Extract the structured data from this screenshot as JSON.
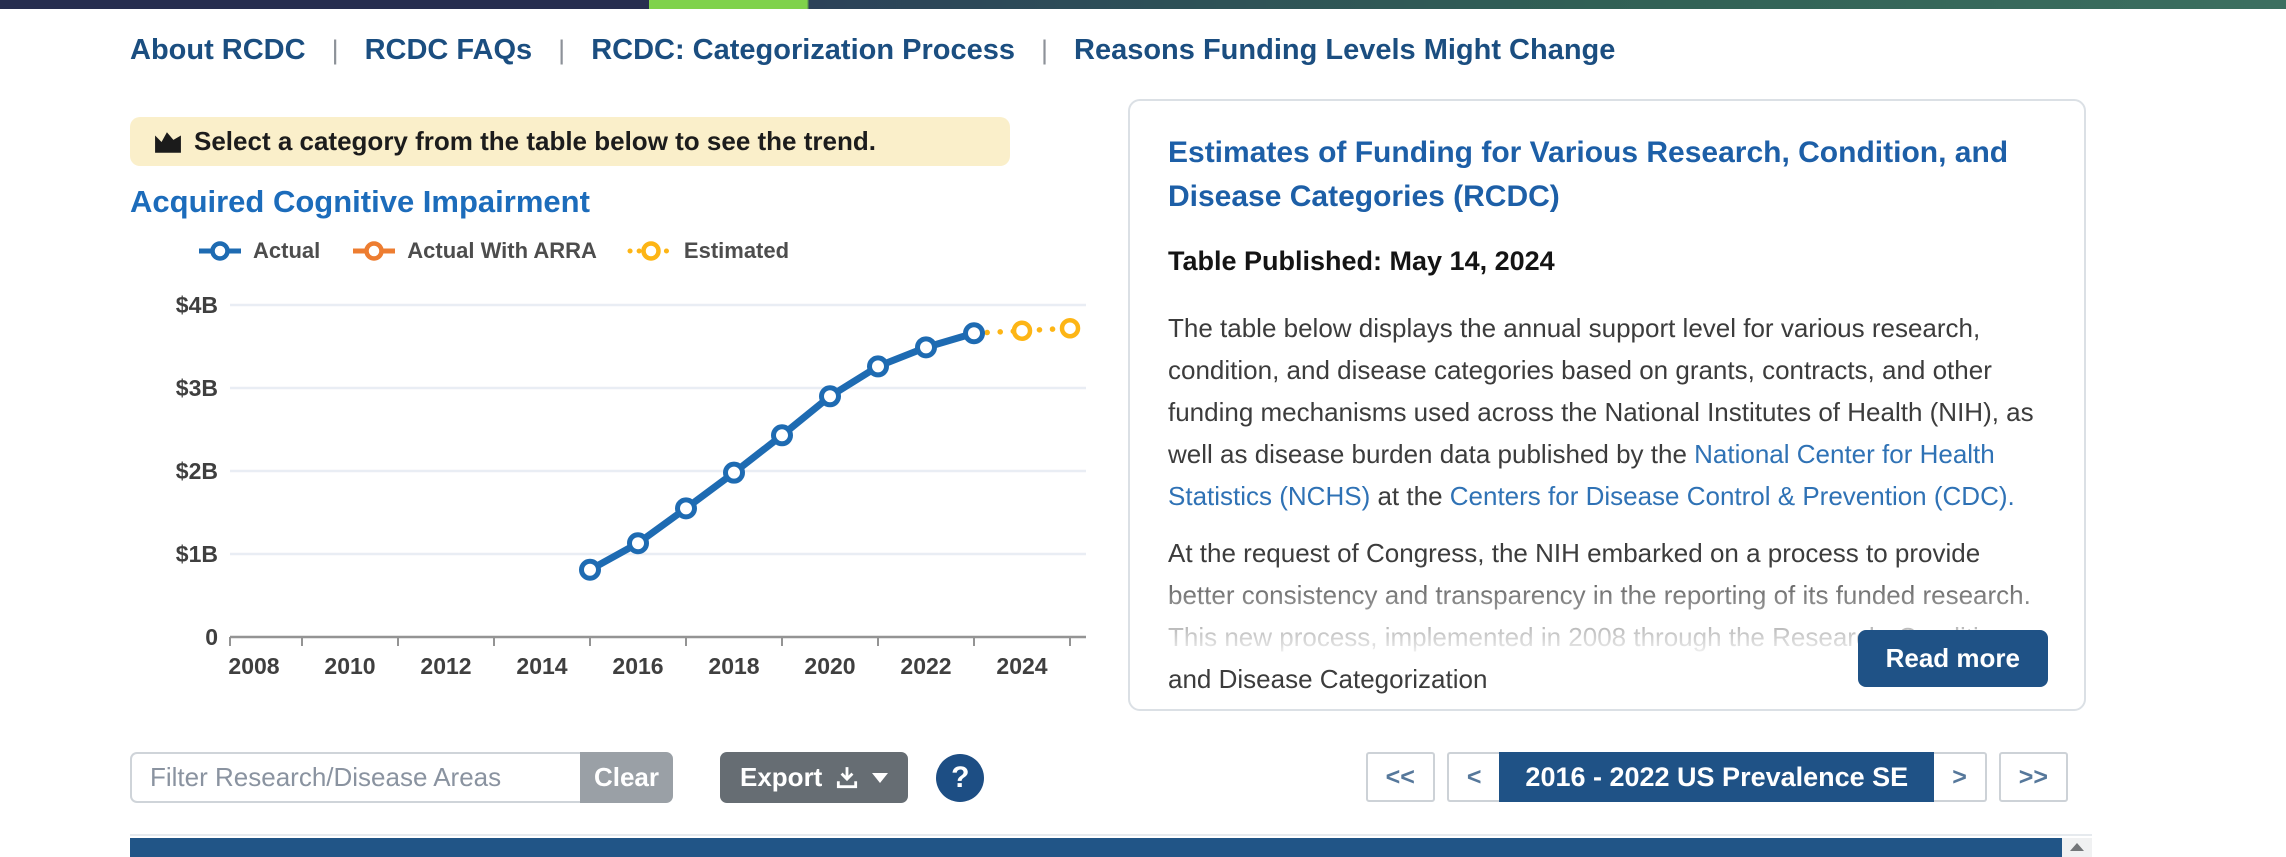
{
  "top_nav": {
    "separator": "|",
    "items": [
      "About RCDC",
      "RCDC FAQs",
      "RCDC: Categorization Process",
      "Reasons Funding Levels Might Change"
    ]
  },
  "alert": {
    "text": "Select a category from the table below to see the trend."
  },
  "chart_data": {
    "type": "line",
    "title": "Acquired Cognitive Impairment",
    "x_ticks": [
      2008,
      2010,
      2012,
      2014,
      2016,
      2018,
      2020,
      2022,
      2024
    ],
    "y_ticks": [
      {
        "label": "$4B",
        "value": 4
      },
      {
        "label": "$3B",
        "value": 3
      },
      {
        "label": "$2B",
        "value": 2
      },
      {
        "label": "$1B",
        "value": 1
      },
      {
        "label": "0",
        "value": 0
      }
    ],
    "xlim": [
      2007.5,
      2025.5
    ],
    "ylim": [
      0,
      4.35
    ],
    "grid": "horizontal-only",
    "legend_position": "top",
    "series": [
      {
        "name": "Actual",
        "color": "#1e6bb2",
        "style": "solid",
        "points": [
          {
            "year": 2015,
            "value": 0.81
          },
          {
            "year": 2016,
            "value": 1.13
          },
          {
            "year": 2017,
            "value": 1.55
          },
          {
            "year": 2018,
            "value": 1.98
          },
          {
            "year": 2019,
            "value": 2.43
          },
          {
            "year": 2020,
            "value": 2.9
          },
          {
            "year": 2021,
            "value": 3.26
          },
          {
            "year": 2022,
            "value": 3.49
          },
          {
            "year": 2023,
            "value": 3.66
          }
        ]
      },
      {
        "name": "Actual With ARRA",
        "color": "#ed7d31",
        "style": "solid",
        "points": []
      },
      {
        "name": "Estimated",
        "color": "#fdb515",
        "style": "dotted",
        "points": [
          {
            "year": 2024,
            "value": 3.69
          },
          {
            "year": 2025,
            "value": 3.72
          }
        ]
      }
    ]
  },
  "info_card": {
    "title": "Estimates of Funding for Various Research, Condition, and Disease Categories (RCDC)",
    "published": "Table Published: May 14, 2024",
    "paragraph1": {
      "text1": "The table below displays the annual support level for various research, condition, and disease categories based on grants, contracts, and other funding mechanisms used across the National Institutes of Health (NIH), as well as disease burden data published by the ",
      "link1": "National Center for Health Statistics (NCHS)",
      "text2": " at the ",
      "link2": "Centers for Disease Control & Prevention (CDC)."
    },
    "paragraph2": "At the request of Congress, the NIH embarked on a process to provide better consistency and transparency in the reporting of its funded research. This new process, implemented in 2008 through the Research, Condition, and Disease Categorization",
    "read_more_label": "Read more"
  },
  "toolbar": {
    "filter_placeholder": "Filter Research/Disease Areas",
    "clear_label": "Clear",
    "export_label": "Export",
    "help_label": "?"
  },
  "pagination": {
    "first": "<<",
    "prev": "<",
    "current": "2016 - 2022 US Prevalence SE",
    "next": ">",
    "last": ">>"
  },
  "colors": {
    "nav_link": "#1b4e80",
    "chart_title": "#1c6cbb",
    "card_title": "#1d5fa7",
    "link": "#2f72b5",
    "alert_bg": "#faefca",
    "primary_button": "#1f5286",
    "export_button": "#666d73",
    "clear_button": "#9aa0a6",
    "table_header": "#215587",
    "series_actual": "#1e6bb2",
    "series_arra": "#ed7d31",
    "series_estimated": "#fdb515"
  }
}
